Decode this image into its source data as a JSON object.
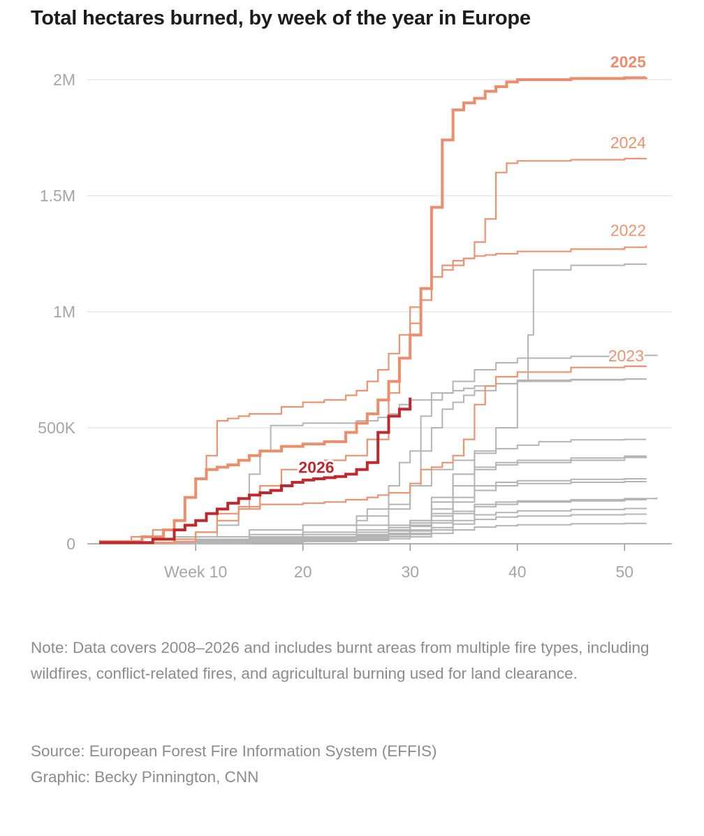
{
  "chart_data": {
    "type": "line",
    "title": "Total hectares burned, by week of the year in Europe",
    "xlabel": "",
    "ylabel": "",
    "xlim": [
      0,
      54
    ],
    "ylim": [
      0,
      2000000
    ],
    "x_ticks": [
      {
        "value": 10,
        "label": "Week 10"
      },
      {
        "value": 20,
        "label": "20"
      },
      {
        "value": 30,
        "label": "30"
      },
      {
        "value": 40,
        "label": "40"
      },
      {
        "value": 50,
        "label": "50"
      }
    ],
    "y_ticks": [
      {
        "value": 0,
        "label": "0"
      },
      {
        "value": 500000,
        "label": "500K"
      },
      {
        "value": 1000000,
        "label": "1M"
      },
      {
        "value": 1500000,
        "label": "1.5M"
      },
      {
        "value": 2000000,
        "label": "2M"
      }
    ],
    "grid": true,
    "step": true,
    "series": [
      {
        "name": "",
        "color": "#b4b4b4",
        "width": 2,
        "x": [
          1,
          10,
          15,
          20,
          25,
          28,
          30,
          32,
          34,
          36,
          38,
          40,
          41,
          41.5,
          45,
          50,
          52
        ],
        "y": [
          5000,
          15000,
          25000,
          40000,
          60000,
          80000,
          100000,
          180000,
          300000,
          400000,
          500000,
          700000,
          900000,
          1180000,
          1200000,
          1205000,
          1208000
        ]
      },
      {
        "name": "",
        "color": "#b4b4b4",
        "width": 2,
        "x": [
          1,
          8,
          12,
          14,
          15,
          16,
          17,
          20,
          25,
          27,
          28,
          29,
          30,
          32,
          34,
          36,
          38,
          40,
          45,
          50,
          53
        ],
        "y": [
          5000,
          30000,
          80000,
          150000,
          300000,
          400000,
          510000,
          520000,
          530000,
          545000,
          560000,
          600000,
          620000,
          650000,
          700000,
          750000,
          780000,
          800000,
          808000,
          812000,
          815000
        ]
      },
      {
        "name": "",
        "color": "#b4b4b4",
        "width": 2,
        "x": [
          1,
          10,
          15,
          20,
          25,
          26,
          28,
          29,
          30,
          31,
          32,
          33,
          34,
          35,
          36,
          38,
          40,
          45,
          50,
          52
        ],
        "y": [
          5000,
          30000,
          60000,
          80000,
          100000,
          150000,
          250000,
          350000,
          400000,
          550000,
          620000,
          650000,
          660000,
          670000,
          680000,
          690000,
          700000,
          706000,
          710000,
          712000
        ]
      },
      {
        "name": "",
        "color": "#b4b4b4",
        "width": 2,
        "x": [
          1,
          10,
          15,
          20,
          25,
          28,
          30,
          31,
          32,
          33,
          34,
          35,
          36,
          38,
          40,
          45,
          50,
          52
        ],
        "y": [
          3000,
          15000,
          30000,
          50000,
          80000,
          150000,
          250000,
          400000,
          500000,
          580000,
          610000,
          640000,
          660000,
          690000,
          705000,
          708000,
          710000,
          712000
        ]
      },
      {
        "name": "",
        "color": "#b4b4b4",
        "width": 2,
        "x": [
          1,
          10,
          15,
          20,
          25,
          28,
          30,
          32,
          34,
          36,
          38,
          40,
          42,
          45,
          50,
          52
        ],
        "y": [
          3000,
          20000,
          40000,
          80000,
          120000,
          170000,
          250000,
          320000,
          360000,
          390000,
          410000,
          425000,
          440000,
          448000,
          450000,
          450000
        ]
      },
      {
        "name": "",
        "color": "#b4b4b4",
        "width": 2,
        "x": [
          1,
          10,
          15,
          20,
          25,
          28,
          30,
          32,
          34,
          36,
          38,
          40,
          45,
          50,
          52
        ],
        "y": [
          3000,
          10000,
          20000,
          30000,
          50000,
          70000,
          100000,
          200000,
          300000,
          330000,
          350000,
          360000,
          370000,
          378000,
          380000
        ]
      },
      {
        "name": "",
        "color": "#b4b4b4",
        "width": 2,
        "x": [
          1,
          10,
          15,
          20,
          25,
          28,
          30,
          32,
          34,
          36,
          38,
          40,
          45,
          50,
          52
        ],
        "y": [
          2000,
          8000,
          15000,
          25000,
          40000,
          60000,
          90000,
          150000,
          250000,
          320000,
          340000,
          350000,
          360000,
          372000,
          377000
        ]
      },
      {
        "name": "",
        "color": "#b4b4b4",
        "width": 2,
        "x": [
          1,
          10,
          15,
          20,
          25,
          28,
          30,
          32,
          34,
          36,
          38,
          40,
          45,
          50,
          52
        ],
        "y": [
          2000,
          8000,
          15000,
          25000,
          40000,
          60000,
          80000,
          130000,
          200000,
          250000,
          265000,
          272000,
          278000,
          280000,
          281000
        ]
      },
      {
        "name": "",
        "color": "#b4b4b4",
        "width": 2,
        "x": [
          1,
          10,
          15,
          20,
          25,
          28,
          30,
          32,
          34,
          36,
          38,
          40,
          45,
          50,
          52
        ],
        "y": [
          2000,
          6000,
          12000,
          20000,
          35000,
          55000,
          75000,
          120000,
          180000,
          230000,
          250000,
          260000,
          265000,
          268000,
          270000
        ]
      },
      {
        "name": "",
        "color": "#b4b4b4",
        "width": 2,
        "x": [
          1,
          10,
          15,
          20,
          25,
          28,
          30,
          32,
          34,
          36,
          38,
          40,
          45,
          50,
          53
        ],
        "y": [
          2000,
          5000,
          10000,
          18000,
          30000,
          45000,
          60000,
          100000,
          140000,
          170000,
          180000,
          185000,
          190000,
          195000,
          200000
        ]
      },
      {
        "name": "",
        "color": "#b4b4b4",
        "width": 2,
        "x": [
          1,
          10,
          15,
          20,
          25,
          28,
          30,
          32,
          34,
          36,
          38,
          40,
          45,
          50,
          52
        ],
        "y": [
          2000,
          5000,
          10000,
          18000,
          28000,
          40000,
          55000,
          90000,
          130000,
          160000,
          170000,
          180000,
          185000,
          190000,
          192000
        ]
      },
      {
        "name": "",
        "color": "#b4b4b4",
        "width": 2,
        "x": [
          1,
          10,
          15,
          20,
          25,
          28,
          30,
          32,
          34,
          36,
          38,
          40,
          45,
          50,
          52
        ],
        "y": [
          1000,
          4000,
          8000,
          14000,
          22000,
          32000,
          45000,
          70000,
          100000,
          125000,
          135000,
          142000,
          148000,
          152000,
          155000
        ]
      },
      {
        "name": "",
        "color": "#b4b4b4",
        "width": 2,
        "x": [
          1,
          10,
          15,
          20,
          25,
          28,
          30,
          32,
          34,
          36,
          38,
          40,
          45,
          50,
          52
        ],
        "y": [
          1000,
          3000,
          6000,
          12000,
          20000,
          30000,
          40000,
          60000,
          85000,
          105000,
          115000,
          120000,
          125000,
          128000,
          130000
        ]
      },
      {
        "name": "",
        "color": "#b4b4b4",
        "width": 2,
        "x": [
          1,
          10,
          15,
          20,
          25,
          28,
          30,
          32,
          34,
          36,
          38,
          40,
          45,
          50,
          52
        ],
        "y": [
          1000,
          2000,
          5000,
          10000,
          15000,
          22000,
          30000,
          45000,
          60000,
          72000,
          78000,
          82000,
          86000,
          88000,
          90000
        ]
      },
      {
        "name": "2024",
        "color": "#ee9270",
        "width": 2.2,
        "x": [
          1,
          4,
          6,
          8,
          9,
          10,
          11,
          12,
          13,
          14,
          15,
          18,
          20,
          22,
          24,
          25,
          26,
          27,
          28,
          29,
          30,
          31,
          32,
          33,
          34,
          35,
          36,
          37,
          38,
          39,
          40,
          45,
          50,
          52
        ],
        "y": [
          5000,
          30000,
          60000,
          100000,
          200000,
          280000,
          380000,
          530000,
          540000,
          550000,
          560000,
          590000,
          610000,
          620000,
          640000,
          660000,
          700000,
          750000,
          820000,
          900000,
          1020000,
          1050000,
          1150000,
          1180000,
          1200000,
          1230000,
          1300000,
          1400000,
          1600000,
          1640000,
          1650000,
          1655000,
          1660000,
          1662000
        ]
      },
      {
        "name": "2022",
        "color": "#ee9270",
        "width": 2.2,
        "x": [
          1,
          8,
          10,
          12,
          14,
          16,
          18,
          20,
          22,
          24,
          26,
          28,
          29,
          30,
          31,
          32,
          33,
          34,
          35,
          36,
          37,
          38,
          40,
          45,
          50,
          52
        ],
        "y": [
          5000,
          20000,
          50000,
          100000,
          150000,
          250000,
          320000,
          340000,
          360000,
          380000,
          450000,
          650000,
          800000,
          950000,
          1050000,
          1150000,
          1200000,
          1220000,
          1230000,
          1240000,
          1245000,
          1250000,
          1260000,
          1270000,
          1278000,
          1285000
        ]
      },
      {
        "name": "2023",
        "color": "#ee9270",
        "width": 2.2,
        "x": [
          1,
          8,
          10,
          12,
          14,
          16,
          18,
          20,
          22,
          24,
          26,
          27,
          28,
          30,
          31,
          32,
          33,
          34,
          35,
          36,
          37,
          38,
          40,
          45,
          50,
          52
        ],
        "y": [
          3000,
          10000,
          50000,
          130000,
          160000,
          170000,
          170000,
          175000,
          180000,
          190000,
          200000,
          210000,
          220000,
          260000,
          320000,
          330000,
          350000,
          380000,
          450000,
          600000,
          680000,
          720000,
          740000,
          760000,
          765000,
          768000
        ]
      },
      {
        "name": "2025",
        "color": "#ec8e6c",
        "width": 4,
        "x": [
          1,
          5,
          7,
          8,
          9,
          10,
          11,
          12,
          13,
          14,
          15,
          16,
          18,
          20,
          22,
          24,
          25,
          26,
          27,
          28,
          29,
          30,
          31,
          32,
          33,
          34,
          35,
          36,
          37,
          38,
          39,
          40,
          45,
          50,
          52
        ],
        "y": [
          10000,
          30000,
          60000,
          100000,
          200000,
          280000,
          320000,
          330000,
          340000,
          360000,
          380000,
          400000,
          420000,
          430000,
          440000,
          480000,
          520000,
          560000,
          620000,
          700000,
          800000,
          900000,
          1100000,
          1450000,
          1740000,
          1870000,
          1900000,
          1920000,
          1950000,
          1970000,
          1990000,
          2000000,
          2005000,
          2008000,
          2010000
        ]
      },
      {
        "name": "2026",
        "color": "#c0282d",
        "width": 4,
        "x": [
          1,
          6,
          8,
          9,
          10,
          11,
          12,
          13,
          14,
          15,
          16,
          17,
          18,
          19,
          20,
          21,
          22,
          23,
          24,
          25,
          26,
          27,
          28,
          29
        ],
        "y": [
          5000,
          20000,
          60000,
          80000,
          100000,
          130000,
          150000,
          175000,
          195000,
          210000,
          220000,
          230000,
          250000,
          265000,
          275000,
          280000,
          285000,
          290000,
          300000,
          320000,
          350000,
          480000,
          550000,
          580000
        ],
        "x_end": 30,
        "y_end": 630000
      }
    ],
    "labels": {
      "y2025": "2025",
      "y2024": "2024",
      "y2022": "2022",
      "y2023": "2023",
      "y2026": "2026"
    }
  },
  "note": "Note: Data covers 2008–2026 and includes burnt areas from multiple fire types, including wildfires, conflict-related fires, and agricultural burning used for land clearance.",
  "source": "Source: European Forest Fire Information System (EFFIS)",
  "graphic": "Graphic: Becky Pinnington, CNN"
}
